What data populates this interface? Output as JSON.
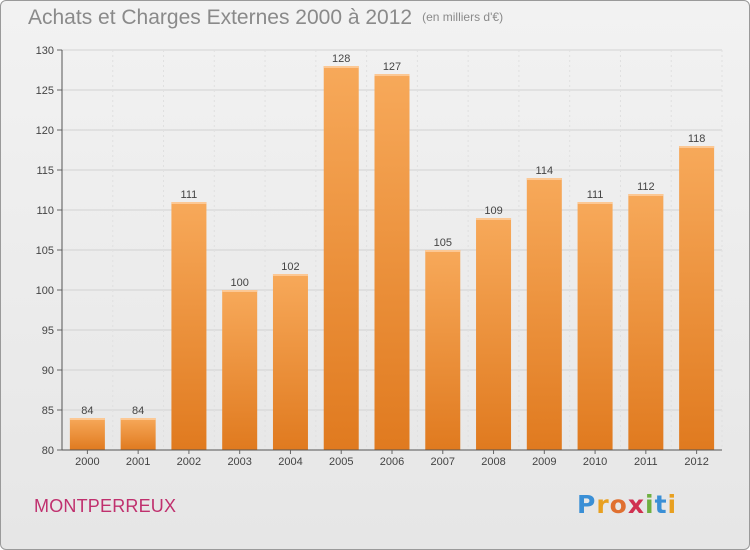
{
  "title": "Achats et Charges Externes 2000 à 2012",
  "unit_note": "(en milliers d'€)",
  "place": "MONTPERREUX",
  "logo": {
    "letters": [
      "P",
      "r",
      "o",
      "x",
      "i",
      "t",
      "i"
    ],
    "colors": [
      "#3a8fd6",
      "#e8a020",
      "#e07030",
      "#d03050",
      "#6fb040",
      "#3a8fd6",
      "#e8a020"
    ]
  },
  "colors": {
    "bar_light": "#f7a95a",
    "bar_dark": "#e07a1f",
    "title": "#8a8a8a",
    "place": "#c0306e"
  },
  "chart_data": {
    "type": "bar",
    "title": "Achats et Charges Externes 2000 à 2012",
    "subtitle": "(en milliers d'€)",
    "xlabel": "",
    "ylabel": "",
    "categories": [
      "2000",
      "2001",
      "2002",
      "2003",
      "2004",
      "2005",
      "2006",
      "2007",
      "2008",
      "2009",
      "2010",
      "2011",
      "2012"
    ],
    "values": [
      84,
      84,
      111,
      100,
      102,
      128,
      127,
      105,
      109,
      114,
      111,
      112,
      118
    ],
    "ylim": [
      80,
      130
    ],
    "yticks": [
      80,
      85,
      90,
      95,
      100,
      105,
      110,
      115,
      120,
      125,
      130
    ],
    "grid": true
  }
}
